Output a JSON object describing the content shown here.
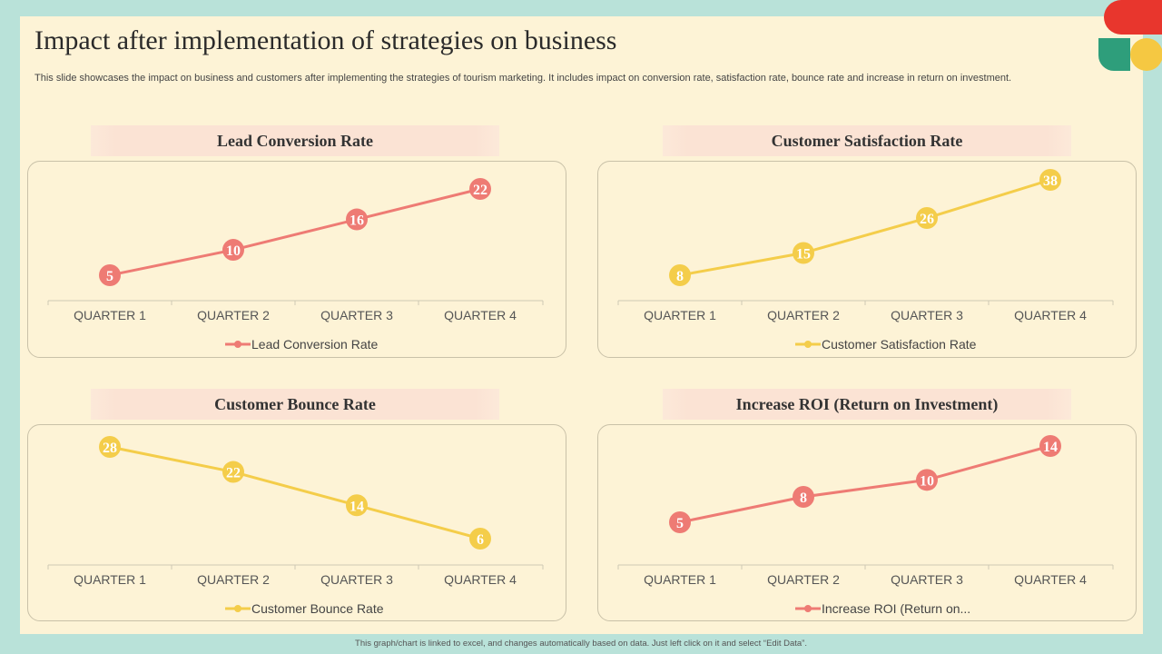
{
  "page": {
    "title": "Impact after implementation of strategies on business",
    "subtitle": "This slide showcases the impact on business and customers after implementing the strategies of tourism marketing. It includes impact on conversion rate, satisfaction rate, bounce rate and increase in return on investment.",
    "footer": "This graph/chart is linked to excel, and changes automatically based on data. Just left click on it and select “Edit Data”."
  },
  "colors": {
    "red": "#ee7b74",
    "yellow": "#f4cd4a",
    "green": "#2e9e7b",
    "logo_red": "#e8362d",
    "logo_yellow": "#f5c842"
  },
  "chart_data": [
    {
      "type": "line",
      "title": "Lead Conversion Rate",
      "categories": [
        "QUARTER  1",
        "QUARTER  2",
        "QUARTER  3",
        "QUARTER  4"
      ],
      "series": [
        {
          "name": "Lead Conversion Rate",
          "values": [
            5,
            10,
            16,
            22
          ],
          "color": "#ee7b74"
        }
      ],
      "legend": "bottom",
      "grid": false
    },
    {
      "type": "line",
      "title": "Customer Satisfaction Rate",
      "categories": [
        "QUARTER  1",
        "QUARTER  2",
        "QUARTER  3",
        "QUARTER  4"
      ],
      "series": [
        {
          "name": "Customer Satisfaction Rate",
          "values": [
            8,
            15,
            26,
            38
          ],
          "color": "#f4cd4a"
        }
      ],
      "legend": "bottom",
      "grid": false
    },
    {
      "type": "line",
      "title": "Customer Bounce Rate",
      "categories": [
        "QUARTER  1",
        "QUARTER  2",
        "QUARTER  3",
        "QUARTER  4"
      ],
      "series": [
        {
          "name": "Customer Bounce Rate",
          "values": [
            28,
            22,
            14,
            6
          ],
          "color": "#f4cd4a"
        }
      ],
      "legend": "bottom",
      "grid": false
    },
    {
      "type": "line",
      "title": "Increase ROI (Return on Investment)",
      "categories": [
        "QUARTER  1",
        "QUARTER  2",
        "QUARTER  3",
        "QUARTER  4"
      ],
      "series": [
        {
          "name": "Increase ROI (Return on...",
          "values": [
            5,
            8,
            10,
            14
          ],
          "color": "#ee7b74"
        }
      ],
      "legend": "bottom",
      "grid": false
    }
  ]
}
